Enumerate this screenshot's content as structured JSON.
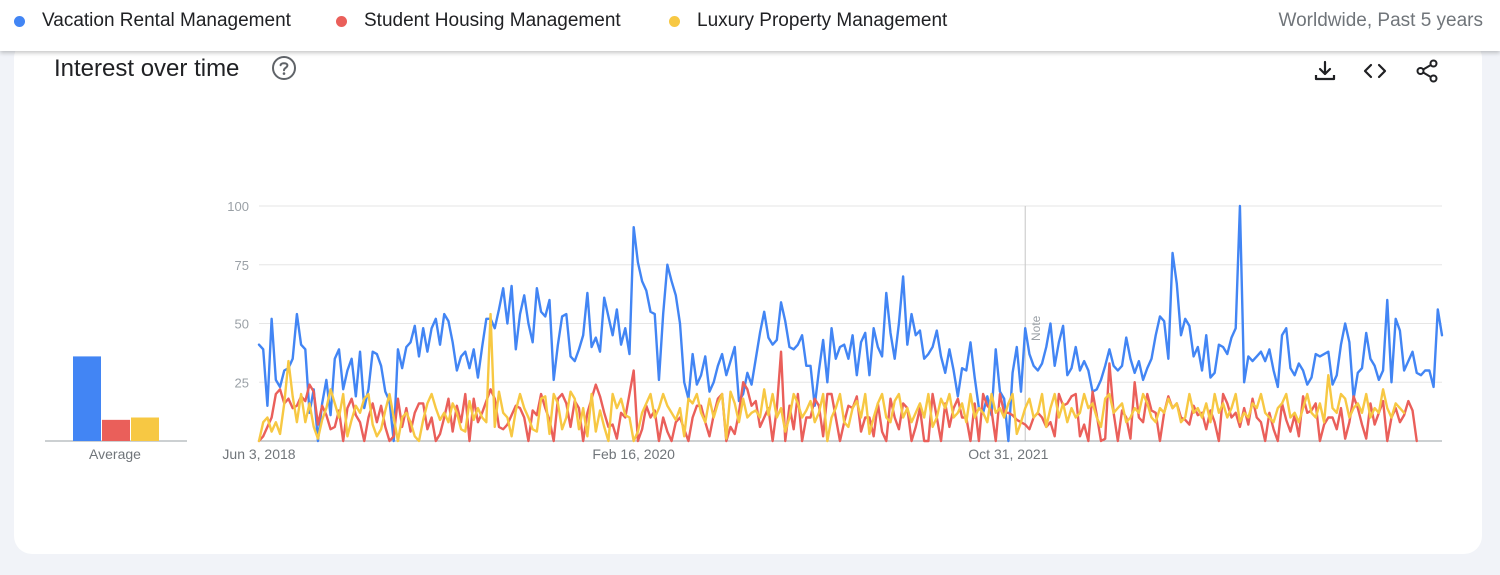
{
  "header": {
    "region_label": "Worldwide, Past 5 years"
  },
  "legend": [
    {
      "label": "Vacation Rental Management",
      "color": "#4285f4"
    },
    {
      "label": "Student Housing Management",
      "color": "#ea5f5a"
    },
    {
      "label": "Luxury Property Management",
      "color": "#f7c843"
    }
  ],
  "card": {
    "title": "Interest over time",
    "icons": [
      "help-icon",
      "download-icon",
      "embed-icon",
      "share-icon"
    ],
    "average_label": "Average"
  },
  "chart_data": {
    "type": "line",
    "ylim": [
      0,
      100
    ],
    "yticks": [
      "100",
      "75",
      "50",
      "25"
    ],
    "grid": true,
    "x_start": "Jun 3, 2018",
    "x_tick_labels": [
      {
        "label": "Jun 3, 2018",
        "index": 0
      },
      {
        "label": "Feb 16, 2020",
        "index": 89
      },
      {
        "label": "Oct 31, 2021",
        "index": 178
      }
    ],
    "note": {
      "label": "Note",
      "index": 182
    },
    "averages": [
      {
        "name": "Vacation Rental Management",
        "value": 36
      },
      {
        "name": "Student Housing Management",
        "value": 9
      },
      {
        "name": "Luxury Property Management",
        "value": 10
      }
    ],
    "series": [
      {
        "name": "Vacation Rental Management",
        "color": "#4285f4",
        "values": [
          41,
          39,
          15,
          52,
          26,
          23,
          30,
          31,
          35,
          54,
          41,
          39,
          12,
          22,
          0,
          16,
          26,
          11,
          35,
          39,
          22,
          30,
          35,
          19,
          38,
          14,
          22,
          38,
          37,
          32,
          21,
          17,
          0,
          39,
          31,
          40,
          42,
          49,
          36,
          48,
          38,
          48,
          52,
          41,
          54,
          51,
          42,
          30,
          36,
          38,
          31,
          39,
          27,
          40,
          52,
          52,
          48,
          56,
          65,
          50,
          66,
          39,
          54,
          62,
          50,
          42,
          65,
          55,
          53,
          60,
          26,
          41,
          53,
          54,
          36,
          34,
          39,
          45,
          63,
          40,
          44,
          38,
          61,
          53,
          45,
          56,
          41,
          48,
          37,
          91,
          76,
          68,
          64,
          55,
          54,
          26,
          54,
          75,
          68,
          62,
          50,
          25,
          18,
          37,
          24,
          28,
          36,
          21,
          25,
          32,
          37,
          28,
          34,
          40,
          17,
          20,
          29,
          24,
          35,
          46,
          55,
          44,
          41,
          43,
          59,
          51,
          40,
          39,
          41,
          45,
          32,
          32,
          15,
          30,
          43,
          25,
          48,
          35,
          40,
          41,
          35,
          45,
          28,
          42,
          46,
          28,
          48,
          40,
          36,
          63,
          46,
          35,
          50,
          70,
          41,
          54,
          45,
          47,
          35,
          37,
          40,
          47,
          36,
          29,
          39,
          30,
          19,
          31,
          30,
          42,
          27,
          14,
          12,
          19,
          11,
          39,
          21,
          18,
          0,
          29,
          40,
          21,
          48,
          37,
          32,
          30,
          33,
          40,
          50,
          32,
          42,
          49,
          28,
          31,
          40,
          30,
          34,
          30,
          21,
          22,
          26,
          32,
          39,
          32,
          30,
          32,
          44,
          35,
          29,
          34,
          26,
          31,
          35,
          45,
          53,
          51,
          35,
          80,
          67,
          45,
          52,
          49,
          36,
          40,
          30,
          45,
          27,
          29,
          41,
          40,
          37,
          44,
          48,
          100,
          25,
          36,
          34,
          36,
          38,
          34,
          39,
          30,
          23,
          45,
          48,
          31,
          28,
          33,
          30,
          24,
          27,
          37,
          36,
          37,
          38,
          24,
          28,
          41,
          50,
          42,
          18,
          29,
          31,
          46,
          35,
          32,
          26,
          30,
          60,
          25,
          52,
          47,
          30,
          34,
          38,
          29,
          28,
          30,
          30,
          23,
          56,
          45
        ]
      },
      {
        "name": "Student Housing Management",
        "color": "#ea5f5a",
        "values": [
          0,
          2,
          6,
          10,
          20,
          22,
          16,
          18,
          14,
          15,
          19,
          17,
          24,
          21,
          7,
          15,
          11,
          5,
          6,
          13,
          0,
          14,
          18,
          11,
          8,
          0,
          10,
          16,
          8,
          15,
          6,
          0,
          2,
          18,
          6,
          14,
          4,
          12,
          16,
          16,
          5,
          10,
          0,
          3,
          10,
          18,
          4,
          15,
          8,
          20,
          0,
          18,
          8,
          12,
          17,
          22,
          18,
          6,
          5,
          7,
          11,
          15,
          14,
          10,
          0,
          13,
          11,
          20,
          14,
          9,
          0,
          18,
          20,
          16,
          6,
          17,
          14,
          0,
          12,
          18,
          24,
          19,
          12,
          6,
          7,
          1,
          12,
          10,
          20,
          30,
          0,
          5,
          15,
          10,
          13,
          0,
          10,
          4,
          0,
          8,
          10,
          5,
          0,
          10,
          15,
          15,
          8,
          2,
          11,
          18,
          20,
          0,
          6,
          3,
          12,
          25,
          22,
          15,
          17,
          6,
          10,
          14,
          0,
          14,
          38,
          0,
          15,
          5,
          20,
          0,
          10,
          10,
          18,
          15,
          2,
          20,
          20,
          10,
          0,
          8,
          15,
          14,
          19,
          4,
          10,
          10,
          2,
          16,
          4,
          0,
          18,
          10,
          5,
          16,
          14,
          0,
          6,
          14,
          0,
          0,
          20,
          10,
          0,
          16,
          6,
          14,
          18,
          10,
          10,
          0,
          16,
          0,
          20,
          15,
          13,
          0,
          20,
          12,
          12,
          11,
          9,
          8,
          7,
          5,
          10,
          12,
          10,
          6,
          8,
          2,
          20,
          15,
          16,
          19,
          20,
          2,
          7,
          0,
          21,
          11,
          0,
          1,
          33,
          12,
          0,
          13,
          10,
          1,
          25,
          10,
          8,
          20,
          13,
          12,
          0,
          12,
          19,
          14,
          16,
          10,
          9,
          7,
          15,
          11,
          12,
          5,
          13,
          8,
          0,
          20,
          16,
          10,
          12,
          6,
          14,
          7,
          18,
          10,
          8,
          0,
          12,
          5,
          0,
          16,
          9,
          4,
          11,
          2,
          19,
          12,
          13,
          16,
          0,
          7,
          10,
          10,
          5,
          14,
          1,
          8,
          19,
          14,
          7,
          1,
          16,
          7,
          12,
          17,
          0,
          10,
          14,
          8,
          11,
          17,
          13,
          0
        ]
      },
      {
        "name": "Luxury Property Management",
        "color": "#f7c843",
        "values": [
          0,
          8,
          10,
          4,
          8,
          3,
          16,
          34,
          19,
          8,
          20,
          8,
          16,
          6,
          1,
          9,
          14,
          22,
          16,
          10,
          20,
          2,
          9,
          15,
          12,
          18,
          20,
          7,
          2,
          5,
          13,
          20,
          10,
          0,
          10,
          12,
          8,
          2,
          0,
          9,
          16,
          20,
          14,
          9,
          12,
          8,
          16,
          12,
          5,
          4,
          17,
          9,
          14,
          10,
          8,
          54,
          6,
          21,
          12,
          10,
          2,
          13,
          20,
          14,
          10,
          5,
          4,
          18,
          19,
          3,
          20,
          16,
          5,
          10,
          21,
          18,
          5,
          14,
          2,
          20,
          4,
          13,
          6,
          0,
          20,
          14,
          18,
          11,
          10,
          0,
          4,
          12,
          16,
          20,
          10,
          14,
          20,
          15,
          12,
          9,
          14,
          2,
          18,
          16,
          20,
          12,
          8,
          18,
          10,
          16,
          20,
          1,
          21,
          16,
          8,
          18,
          10,
          12,
          13,
          10,
          22,
          11,
          20,
          10,
          14,
          4,
          10,
          20,
          16,
          10,
          13,
          17,
          8,
          12,
          20,
          0,
          10,
          14,
          20,
          8,
          6,
          14,
          17,
          10,
          20,
          3,
          10,
          16,
          20,
          10,
          8,
          17,
          20,
          10,
          14,
          8,
          12,
          16,
          10,
          20,
          6,
          10,
          18,
          14,
          20,
          10,
          12,
          16,
          8,
          20,
          10,
          14,
          12,
          8,
          20,
          12,
          14,
          10,
          16,
          20,
          3,
          8,
          14,
          18,
          10,
          12,
          20,
          6,
          14,
          20,
          10,
          16,
          8,
          14,
          10,
          12,
          20,
          14,
          16,
          10,
          6,
          18,
          20,
          12,
          14,
          16,
          8,
          10,
          14,
          12,
          20,
          16,
          10,
          8,
          14,
          12,
          18,
          14,
          16,
          8,
          10,
          20,
          12,
          14,
          10,
          16,
          8,
          20,
          12,
          16,
          10,
          14,
          20,
          8,
          12,
          10,
          16,
          14,
          20,
          12,
          10,
          8,
          14,
          16,
          20,
          10,
          12,
          8,
          14,
          20,
          12,
          10,
          16,
          8,
          28,
          14,
          12,
          20,
          18,
          10,
          14,
          16,
          12,
          20,
          10,
          14,
          12,
          22,
          14,
          10,
          16,
          14,
          12
        ]
      }
    ]
  }
}
